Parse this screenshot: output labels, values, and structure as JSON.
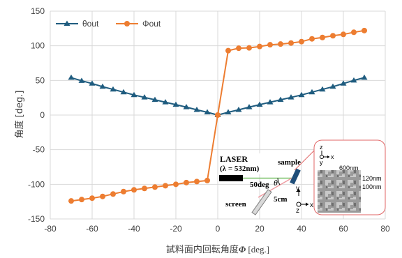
{
  "chart_data": {
    "type": "line",
    "xlabel_text": "試料面内回転角度",
    "xlabel_symbol": "Φ",
    "xlabel_unit": " [deg.]",
    "ylabel": "角度 [deg.]",
    "xlim": [
      -80,
      80
    ],
    "ylim": [
      -150,
      150
    ],
    "x_ticks": [
      -80,
      -60,
      -40,
      -20,
      0,
      20,
      40,
      60,
      80
    ],
    "y_ticks": [
      -150,
      -100,
      -50,
      0,
      50,
      100,
      150
    ],
    "grid": true,
    "legend_position": "top-left",
    "x": [
      -70,
      -65,
      -60,
      -55,
      -50,
      -45,
      -40,
      -35,
      -30,
      -25,
      -20,
      -15,
      -10,
      -5,
      0,
      5,
      10,
      15,
      20,
      25,
      30,
      35,
      40,
      45,
      50,
      55,
      60,
      65,
      70
    ],
    "series": [
      {
        "name": "θout",
        "color": "#1f5c7f",
        "marker": "triangle",
        "values": [
          54,
          49.5,
          45.5,
          41,
          37,
          33,
          29,
          25.5,
          22,
          18.5,
          15,
          11.5,
          7.5,
          4,
          0,
          4,
          7.5,
          11.5,
          15,
          18.5,
          22,
          25.5,
          29,
          33,
          37,
          41,
          45.5,
          50,
          54
        ]
      },
      {
        "name": "Φout",
        "color": "#ed7d31",
        "marker": "circle",
        "values": [
          -124,
          -122,
          -120,
          -117.5,
          -114,
          -110.5,
          -108,
          -106,
          -104,
          -102,
          -100,
          -97.5,
          -96,
          -94.5,
          0,
          93,
          96.5,
          97,
          99,
          101.5,
          102.5,
          104,
          106,
          110,
          112,
          114.5,
          116.5,
          119.5,
          122
        ]
      }
    ],
    "inset": {
      "laser_label": "LASER",
      "wavelength_label": "(λ = 532nm)",
      "sample_label": "sample",
      "angle_label": "50deg",
      "theta_symbol": "θ",
      "screen_label": "screen",
      "distance_label": "5cm",
      "lab_axes": {
        "y": "y",
        "x": "x",
        "z": "z"
      },
      "sem_axes": {
        "z": "z",
        "x": "x",
        "y": "y"
      },
      "sem_width_label": "600nm",
      "sem_height_label_1": "120nm",
      "sem_height_label_2": "100nm"
    }
  }
}
